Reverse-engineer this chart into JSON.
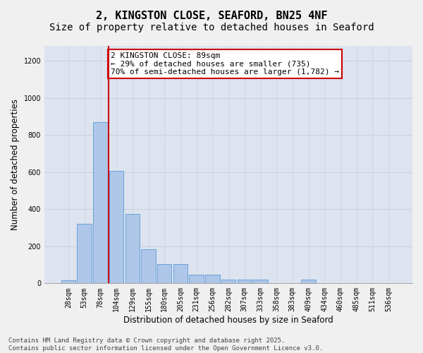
{
  "title_line1": "2, KINGSTON CLOSE, SEAFORD, BN25 4NF",
  "title_line2": "Size of property relative to detached houses in Seaford",
  "xlabel": "Distribution of detached houses by size in Seaford",
  "ylabel": "Number of detached properties",
  "categories": [
    "28sqm",
    "53sqm",
    "78sqm",
    "104sqm",
    "129sqm",
    "155sqm",
    "180sqm",
    "205sqm",
    "231sqm",
    "256sqm",
    "282sqm",
    "307sqm",
    "333sqm",
    "358sqm",
    "383sqm",
    "409sqm",
    "434sqm",
    "460sqm",
    "485sqm",
    "511sqm",
    "536sqm"
  ],
  "values": [
    15,
    320,
    870,
    605,
    375,
    185,
    105,
    105,
    47,
    47,
    20,
    20,
    20,
    0,
    0,
    20,
    0,
    0,
    0,
    0,
    0
  ],
  "bar_color": "#aec6e8",
  "bar_edge_color": "#5b9bd5",
  "vline_color": "#cc0000",
  "annotation_text": "2 KINGSTON CLOSE: 89sqm\n← 29% of detached houses are smaller (735)\n70% of semi-detached houses are larger (1,782) →",
  "annotation_box_color": "#ffffff",
  "annotation_box_edge": "#cc0000",
  "ylim": [
    0,
    1280
  ],
  "yticks": [
    0,
    200,
    400,
    600,
    800,
    1000,
    1200
  ],
  "grid_color": "#c8d0dc",
  "bg_color": "#dde4f0",
  "fig_bg_color": "#f0f0f0",
  "footer_line1": "Contains HM Land Registry data © Crown copyright and database right 2025.",
  "footer_line2": "Contains public sector information licensed under the Open Government Licence v3.0.",
  "title_fontsize": 11,
  "subtitle_fontsize": 10,
  "axis_label_fontsize": 8.5,
  "tick_fontsize": 7,
  "annotation_fontsize": 8,
  "footer_fontsize": 6.5,
  "vline_bar_index": 2
}
